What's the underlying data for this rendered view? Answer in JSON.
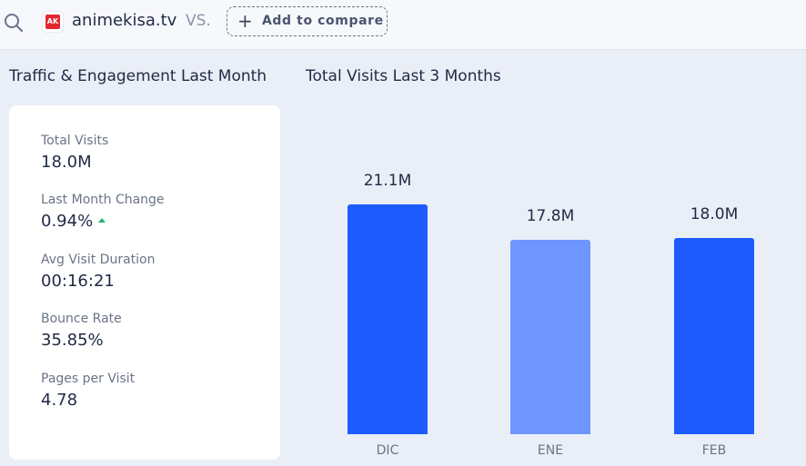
{
  "header": {
    "site_name": "animekisa.tv",
    "logo_text": "AK",
    "vs_label": "VS.",
    "compare_label": "Add to compare"
  },
  "left_section": {
    "title": "Traffic & Engagement Last Month",
    "metrics": [
      {
        "label": "Total Visits",
        "value": "18.0M"
      },
      {
        "label": "Last Month Change",
        "value": "0.94%",
        "trend": "up"
      },
      {
        "label": "Avg Visit Duration",
        "value": "00:16:21"
      },
      {
        "label": "Bounce Rate",
        "value": "35.85%"
      },
      {
        "label": "Pages per Visit",
        "value": "4.78"
      }
    ]
  },
  "right_section": {
    "title": "Total Visits Last 3 Months"
  },
  "colors": {
    "accent": "#1e5bff",
    "accent_light": "#6f95ff",
    "trend_up": "#22b573"
  },
  "chart_data": {
    "type": "bar",
    "title": "Total Visits Last 3 Months",
    "categories": [
      "DIC",
      "ENE",
      "FEB"
    ],
    "values": [
      21.1,
      17.8,
      18.0
    ],
    "value_labels": [
      "21.1M",
      "17.8M",
      "18.0M"
    ],
    "bar_colors": [
      "#1e5bff",
      "#6f95ff",
      "#1e5bff"
    ],
    "ylim": [
      0,
      24
    ],
    "grid": false,
    "xlabel": "",
    "ylabel": ""
  }
}
